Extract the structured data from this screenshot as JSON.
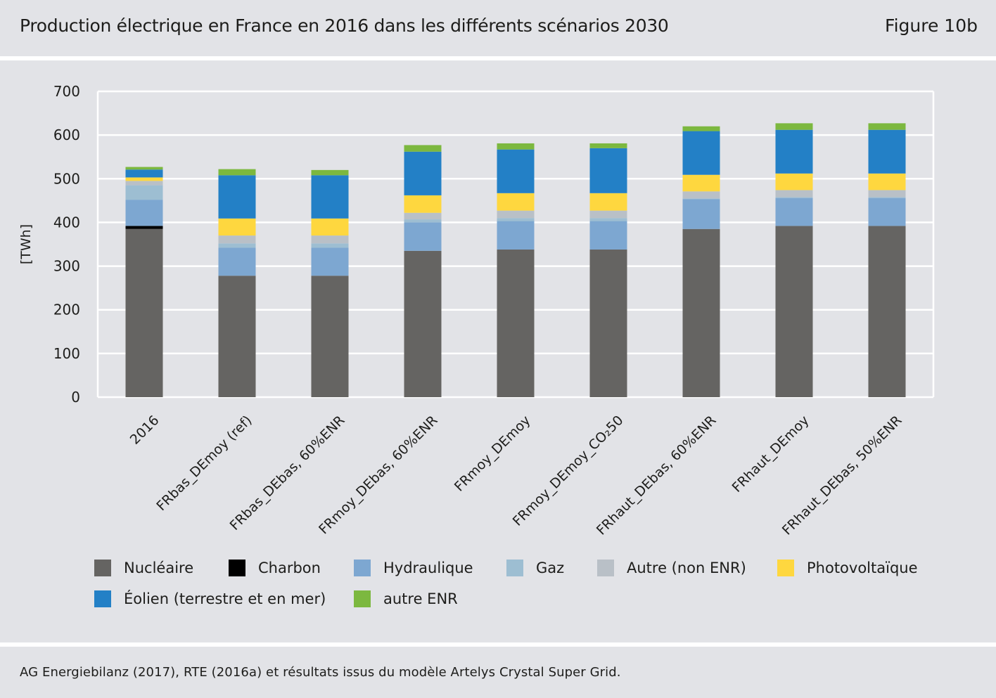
{
  "header": {
    "title": "Production électrique en France en 2016 dans les différents scénarios 2030",
    "figure_label": "Figure 10b"
  },
  "source": "AG Energiebilanz (2017), RTE (2016a) et résultats issus du modèle Artelys Crystal Super Grid.",
  "chart_data": {
    "type": "bar",
    "stacked": true,
    "title": "Production électrique en France en 2016 dans les différents scénarios 2030",
    "xlabel": "",
    "ylabel": "[TWh]",
    "ylim": [
      0,
      700
    ],
    "yticks": [
      "0",
      "100",
      "200",
      "300",
      "400",
      "500",
      "600",
      "700"
    ],
    "grid": true,
    "legend_position": "bottom",
    "categories": [
      "2016",
      "FRbas_DEmoy (ref)",
      "FRbas_DEbas, 60%ENR",
      "FRmoy_DEbas, 60%ENR",
      "FRmoy_DEmoy",
      "FRmoy_DEmoy_CO₂50",
      "FRhaut_DEbas, 60%ENR",
      "FRhaut_DEmoy",
      "FRhaut_DEbas, 50%ENR"
    ],
    "series": [
      {
        "name": "Nucléaire",
        "color": "#656462",
        "values": [
          385,
          278,
          278,
          335,
          338,
          338,
          385,
          392,
          392
        ]
      },
      {
        "name": "Charbon",
        "color": "#000000",
        "values": [
          7,
          0,
          0,
          0,
          0,
          0,
          0,
          0,
          0
        ]
      },
      {
        "name": "Hydraulique",
        "color": "#7da7d1",
        "values": [
          60,
          64,
          64,
          65,
          65,
          65,
          68,
          64,
          64
        ]
      },
      {
        "name": "Gaz",
        "color": "#9dbed2",
        "values": [
          33,
          10,
          10,
          7,
          7,
          7,
          2,
          2,
          2
        ]
      },
      {
        "name": "Autre (non ENR)",
        "color": "#b9c0c7",
        "values": [
          10,
          18,
          18,
          15,
          17,
          17,
          16,
          16,
          16
        ]
      },
      {
        "name": "Photovoltaïque",
        "color": "#fed73f",
        "values": [
          8,
          39,
          39,
          40,
          40,
          40,
          38,
          38,
          38
        ]
      },
      {
        "name": "Éolien (terrestre et en mer)",
        "color": "#2380c6",
        "values": [
          18,
          99,
          99,
          100,
          100,
          103,
          100,
          100,
          100
        ]
      },
      {
        "name": "autre ENR",
        "color": "#7cb83f",
        "values": [
          6,
          14,
          12,
          15,
          14,
          11,
          11,
          15,
          15
        ]
      }
    ]
  }
}
